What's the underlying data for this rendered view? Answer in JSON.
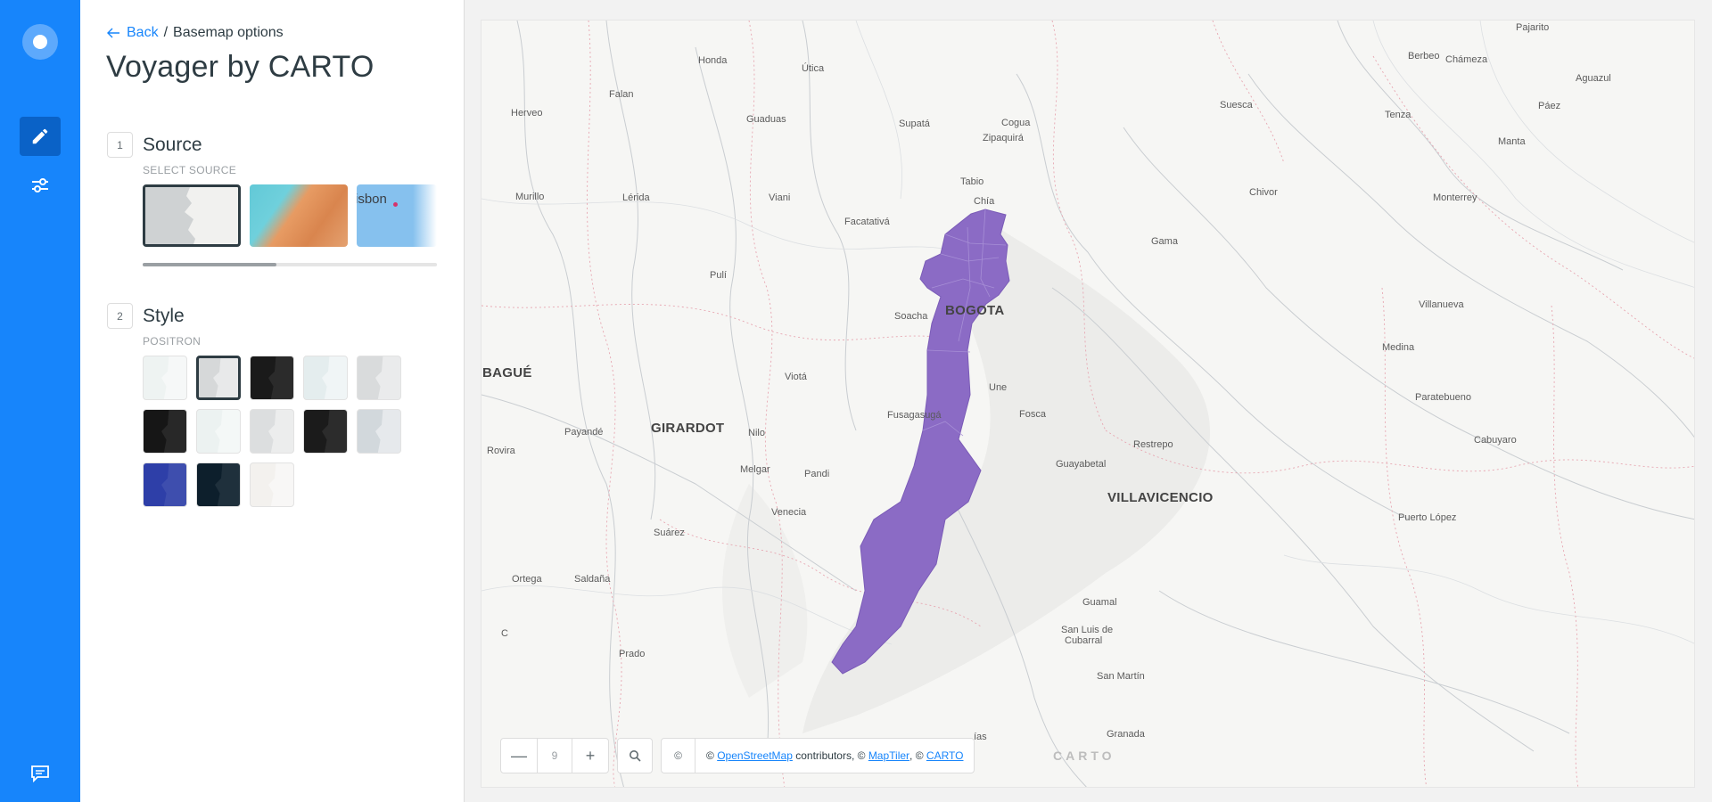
{
  "nav": {
    "logo": "carto-logo",
    "items": [
      "edit-icon",
      "settings-sliders-icon"
    ],
    "bottom": "chat-icon"
  },
  "panel": {
    "back_label": "Back",
    "breadcrumb_current": "Basemap options",
    "title": "Voyager by CARTO",
    "source": {
      "step": "1",
      "label": "Source",
      "sublabel": "SELECT SOURCE",
      "thumb3_text": "isbon"
    },
    "style": {
      "step": "2",
      "label": "Style",
      "sublabel": "POSITRON",
      "swatches": [
        {
          "name": "style-voyager",
          "color": "#eef3f2",
          "selected": false
        },
        {
          "name": "style-positron",
          "color": "#d6d8d9",
          "selected": true
        },
        {
          "name": "style-dark-matter",
          "color": "#1a1a1a",
          "selected": false
        },
        {
          "name": "style-voyager-labels-under",
          "color": "#e4edee",
          "selected": false
        },
        {
          "name": "style-positron-labels-under",
          "color": "#d9dbdc",
          "selected": false
        },
        {
          "name": "style-dark-matter-labels-under",
          "color": "#161616",
          "selected": false
        },
        {
          "name": "style-voyager-no-labels",
          "color": "#ecf2f1",
          "selected": false
        },
        {
          "name": "style-positron-no-labels",
          "color": "#dcdedf",
          "selected": false
        },
        {
          "name": "style-dark-matter-no-labels",
          "color": "#1b1b1b",
          "selected": false
        },
        {
          "name": "style-positron-lite",
          "color": "#d2d8dc",
          "selected": false
        },
        {
          "name": "style-blue",
          "color": "#2e3fa8",
          "selected": false
        },
        {
          "name": "style-dark-blue",
          "color": "#0d1f2c",
          "selected": false
        },
        {
          "name": "style-antique",
          "color": "#f3f1ee",
          "selected": false
        }
      ]
    }
  },
  "map": {
    "zoom_level": "9",
    "zoom_out": "—",
    "zoom_in": "+",
    "attrib_symbol": "©",
    "attrib_prefix": "©",
    "attrib_osm": "OpenStreetMap",
    "attrib_mid": "contributors, ©",
    "attrib_maptiler": "MapTiler",
    "attrib_sep": ", ©",
    "attrib_carto": "CARTO",
    "carto_logo": "CARTO",
    "polygon_color": "#8b6bc5",
    "cities": [
      "BOGOTA",
      "BAGUÉ",
      "GIRARDOT",
      "VILLAVICENCIO"
    ],
    "towns": [
      "Pajarito",
      "Honda",
      "Útica",
      "Berbeo",
      "Chámeza",
      "Aguazul",
      "Falan",
      "Suesca",
      "Cogua",
      "Herveo",
      "Guaduas",
      "Supatá",
      "Zipaquirá",
      "Tenza",
      "Páez",
      "Manta",
      "Tabio",
      "Murillo",
      "Lérida",
      "Viani",
      "Chía",
      "Chivor",
      "Monterrey",
      "Facatativá",
      "Gama",
      "Pulí",
      "Soacha",
      "Villanueva",
      "Medina",
      "Viotá",
      "Une",
      "Paratebueno",
      "Fusagasugá",
      "Fosca",
      "Payandé",
      "Nilo",
      "Rovira",
      "Restrepo",
      "Cabuyaro",
      "Melgar",
      "Pandi",
      "Guayabetal",
      "Venecia",
      "Puerto López",
      "Suárez",
      "Ortega",
      "Saldaña",
      "Guamal",
      "C",
      "San Luis de",
      "Cubarral",
      "Prado",
      "San Martín",
      "Granada",
      "ías"
    ]
  }
}
